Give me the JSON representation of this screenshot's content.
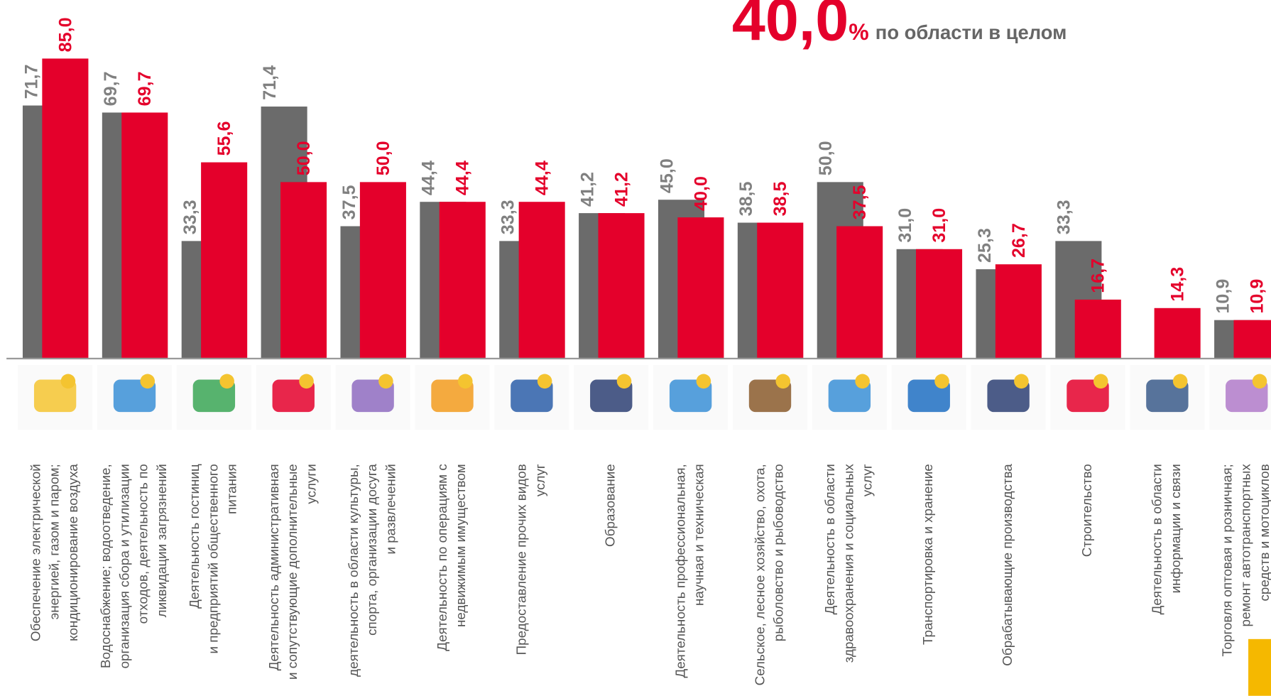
{
  "chart_data": {
    "type": "bar",
    "headline": {
      "value_label": "40,0",
      "unit": "%",
      "text": "по области в целом"
    },
    "categories": [
      [
        "Обеспечение электрической",
        "энергией, газом и паром;",
        "кондиционирование воздуха"
      ],
      [
        "Водоснабжение; водоотведение,",
        "организация сбора и утилизации",
        "отходов, деятельность по",
        "ликвидации загрязнений"
      ],
      [
        "Деятельность гостиниц",
        "и предприятий общественного",
        "питания"
      ],
      [
        "Деятельность административная",
        "и сопутствующие дополнительные",
        "услуги"
      ],
      [
        "деятельность в области культуры,",
        "спорта, организации досуга",
        "и развлечений"
      ],
      [
        "Деятельность по операциям с",
        "недвижимым имуществом"
      ],
      [
        "Предоставление прочих видов",
        "услуг"
      ],
      [
        "Образование"
      ],
      [
        "Деятельность профессиональная,",
        "научная и техническая"
      ],
      [
        "Сельское, лесное хозяйство, охота,",
        "рыболовство и рыбоводство"
      ],
      [
        "Деятельность в области",
        "здравоохранения и социальных",
        "услуг"
      ],
      [
        "Транспортировка и хранение"
      ],
      [
        "Обрабатывающие производства"
      ],
      [
        "Строительство"
      ],
      [
        "Деятельность в области",
        "информации и связи"
      ],
      [
        "Торговля оптовая и розничная;",
        "ремонт автотранспортных",
        "средств и мотоциклов"
      ]
    ],
    "series": [
      {
        "color": "#6b6b6b",
        "label_color": "#808080",
        "values": [
          71.7,
          69.7,
          33.3,
          71.4,
          37.5,
          44.4,
          33.3,
          41.2,
          45.0,
          38.5,
          50.0,
          31.0,
          25.3,
          33.3,
          null,
          10.9
        ],
        "value_labels": [
          "71,7",
          "69,7",
          "33,3",
          "71,4",
          "37,5",
          "44,4",
          "33,3",
          "41,2",
          "45,0",
          "38,5",
          "50,0",
          "31,0",
          "25,3",
          "33,3",
          null,
          "10,9"
        ]
      },
      {
        "color": "#e4002b",
        "label_color": "#e4002b",
        "values": [
          85.0,
          69.7,
          55.6,
          50.0,
          50.0,
          44.4,
          44.4,
          41.2,
          40.0,
          38.5,
          37.5,
          31.0,
          26.7,
          16.7,
          14.3,
          10.9
        ],
        "value_labels": [
          "85,0",
          "69,7",
          "55,6",
          "50,0",
          "50,0",
          "44,4",
          "44,4",
          "41,2",
          "40,0",
          "38,5",
          "37,5",
          "31,0",
          "26,7",
          "16,7",
          "14,3",
          "10,9"
        ]
      }
    ],
    "ylim": [
      0,
      85
    ]
  }
}
